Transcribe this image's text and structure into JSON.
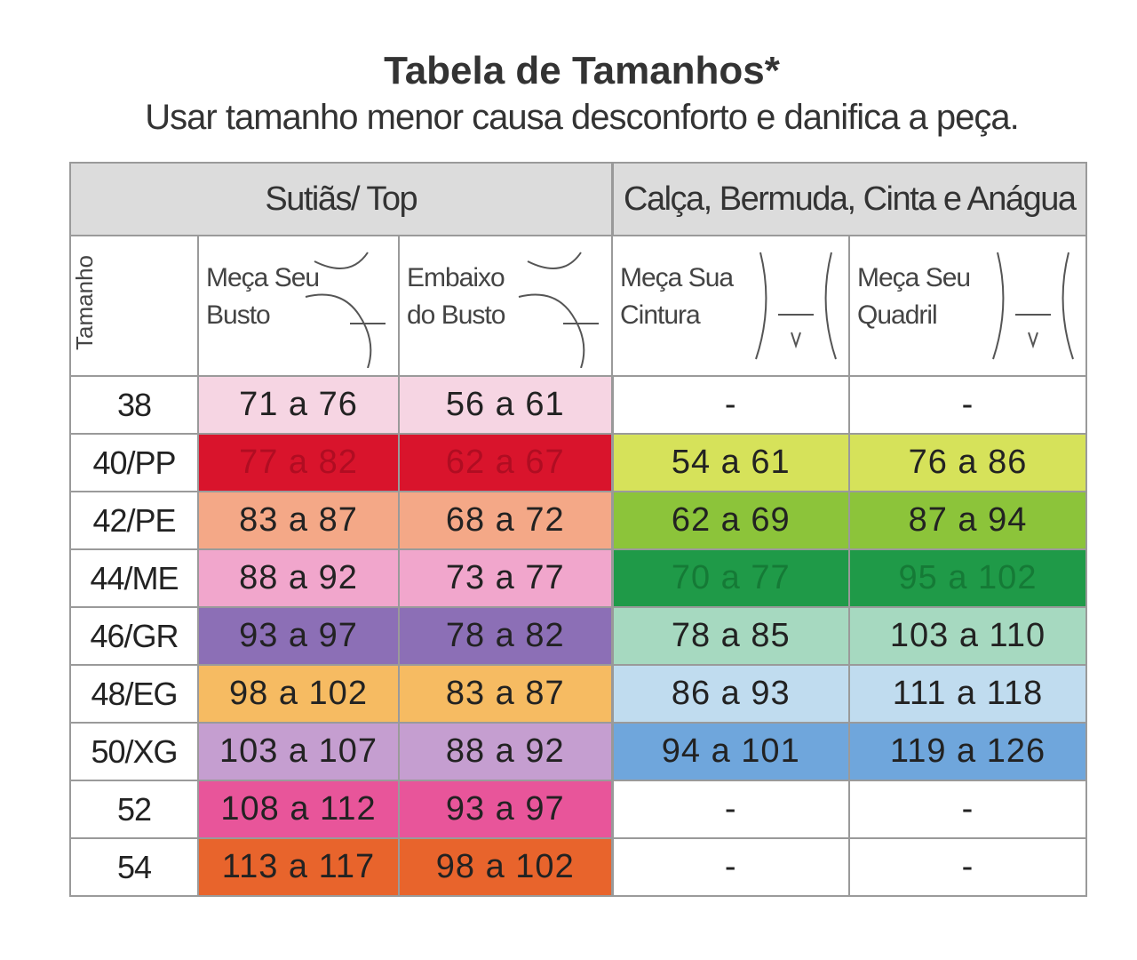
{
  "header": {
    "title": "Tabela de Tamanhos*",
    "subtitle": "Usar tamanho menor causa desconforto e danifica a peça."
  },
  "table": {
    "groups": [
      "Sutiãs/ Top",
      "Calça, Bermuda, Cinta e Anágua"
    ],
    "size_header": "Tamanho",
    "columns": [
      [
        "Meça Seu",
        "Busto"
      ],
      [
        "Embaixo",
        "do Busto"
      ],
      [
        "Meça Sua",
        "Cintura"
      ],
      [
        "Meça Seu",
        "Quadril"
      ]
    ],
    "rows": [
      [
        "38",
        "71 a 76",
        "56 a 61",
        "-",
        "-"
      ],
      [
        "40/PP",
        "77 a 82",
        "62 a 67",
        "54 a 61",
        "76 a 86"
      ],
      [
        "42/PE",
        "83 a 87",
        "68 a 72",
        "62 a 69",
        "87 a 94"
      ],
      [
        "44/ME",
        "88 a 92",
        "73 a 77",
        "70 a 77",
        "95 a 102"
      ],
      [
        "46/GR",
        "93 a 97",
        "78 a 82",
        "78 a 85",
        "103 a 110"
      ],
      [
        "48/EG",
        "98 a 102",
        "83 a 87",
        "86 a 93",
        "111 a 118"
      ],
      [
        "50/XG",
        "103 a 107",
        "88 a 92",
        "94 a 101",
        "119 a 126"
      ],
      [
        "52",
        "108 a 112",
        "93 a 97",
        "-",
        "-"
      ],
      [
        "54",
        "113 a 117",
        "98 a 102",
        "-",
        "-"
      ]
    ]
  }
}
